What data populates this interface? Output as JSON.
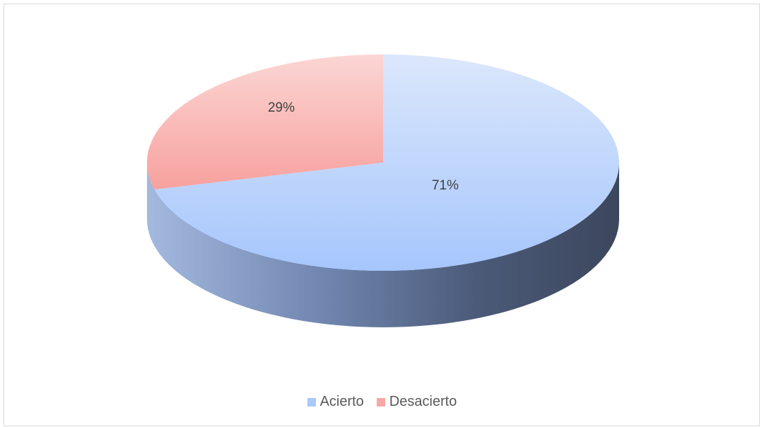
{
  "chart_data": {
    "type": "pie",
    "title": "",
    "categories": [
      "Acierto",
      "Desacierto"
    ],
    "values": [
      71,
      29
    ],
    "data_labels": [
      "71%",
      "29%"
    ],
    "colors": [
      "#a9c8fb",
      "#f7a8a6"
    ],
    "legend_position": "bottom",
    "style": "3d"
  },
  "legend": {
    "items": [
      {
        "label": "Acierto",
        "color": "#a9c8fb"
      },
      {
        "label": "Desacierto",
        "color": "#f7a8a6"
      }
    ]
  }
}
